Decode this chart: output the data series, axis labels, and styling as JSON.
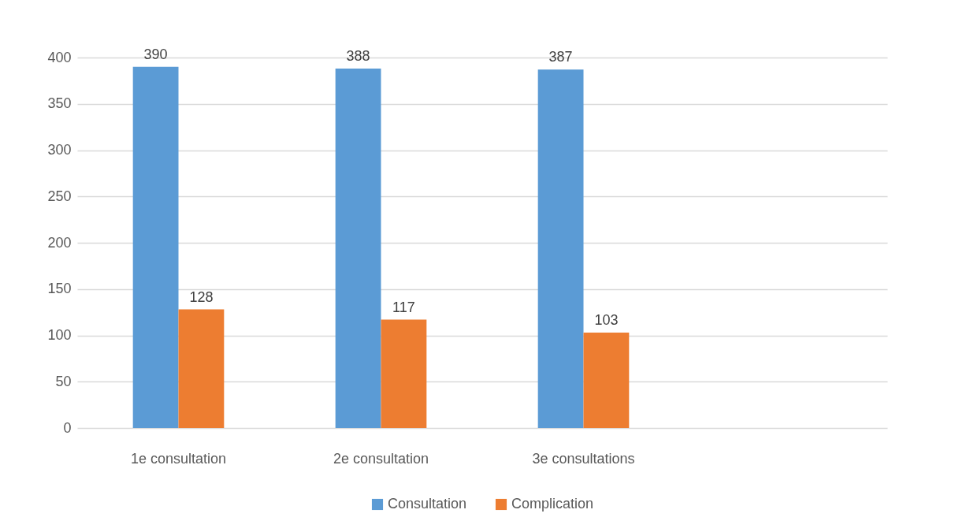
{
  "chart_data": {
    "type": "bar",
    "categories": [
      "1e consultation",
      "2e consultation",
      "3e consultations",
      null
    ],
    "series": [
      {
        "name": "Consultation",
        "color": "#5b9bd5",
        "values": [
          390,
          388,
          387,
          null
        ]
      },
      {
        "name": "Complication",
        "color": "#ed7d31",
        "values": [
          128,
          117,
          103,
          null
        ]
      }
    ],
    "ylim": [
      0,
      400
    ],
    "yticks": [
      0,
      50,
      100,
      150,
      200,
      250,
      300,
      350,
      400
    ],
    "grid": "y",
    "legend": "bottom",
    "data_labels": true
  }
}
